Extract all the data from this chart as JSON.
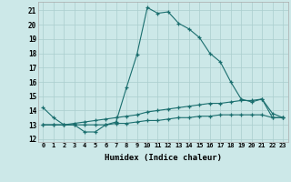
{
  "bg_color": "#cce8e8",
  "grid_color": "#aacece",
  "line_color": "#1a6e6e",
  "xlabel": "Humidex (Indice chaleur)",
  "x_ticks": [
    0,
    1,
    2,
    3,
    4,
    5,
    6,
    7,
    8,
    9,
    10,
    11,
    12,
    13,
    14,
    15,
    16,
    17,
    18,
    19,
    20,
    21,
    22,
    23
  ],
  "ylim": [
    11.8,
    21.6
  ],
  "y_ticks": [
    12,
    13,
    14,
    15,
    16,
    17,
    18,
    19,
    20,
    21
  ],
  "series1_x": [
    0,
    1,
    2,
    3,
    4,
    5,
    6,
    7,
    8,
    9,
    10,
    11,
    12,
    13,
    14,
    15,
    16,
    17,
    18,
    19,
    20,
    21,
    22,
    23
  ],
  "series1_y": [
    14.2,
    13.5,
    13.0,
    13.0,
    12.5,
    12.5,
    13.0,
    13.2,
    15.6,
    17.9,
    21.2,
    20.8,
    20.9,
    20.1,
    19.7,
    19.1,
    18.0,
    17.4,
    16.0,
    14.8,
    14.6,
    14.8,
    13.8,
    13.5
  ],
  "series2_x": [
    0,
    1,
    2,
    3,
    4,
    5,
    6,
    7,
    8,
    9,
    10,
    11,
    12,
    13,
    14,
    15,
    16,
    17,
    18,
    19,
    20,
    21,
    22,
    23
  ],
  "series2_y": [
    13.0,
    13.0,
    13.0,
    13.1,
    13.2,
    13.3,
    13.4,
    13.5,
    13.6,
    13.7,
    13.9,
    14.0,
    14.1,
    14.2,
    14.3,
    14.4,
    14.5,
    14.5,
    14.6,
    14.7,
    14.7,
    14.8,
    13.5,
    13.5
  ],
  "series3_x": [
    0,
    1,
    2,
    3,
    4,
    5,
    6,
    7,
    8,
    9,
    10,
    11,
    12,
    13,
    14,
    15,
    16,
    17,
    18,
    19,
    20,
    21,
    22,
    23
  ],
  "series3_y": [
    13.0,
    13.0,
    13.0,
    13.0,
    13.0,
    13.0,
    13.0,
    13.1,
    13.1,
    13.2,
    13.3,
    13.3,
    13.4,
    13.5,
    13.5,
    13.6,
    13.6,
    13.7,
    13.7,
    13.7,
    13.7,
    13.7,
    13.5,
    13.5
  ]
}
